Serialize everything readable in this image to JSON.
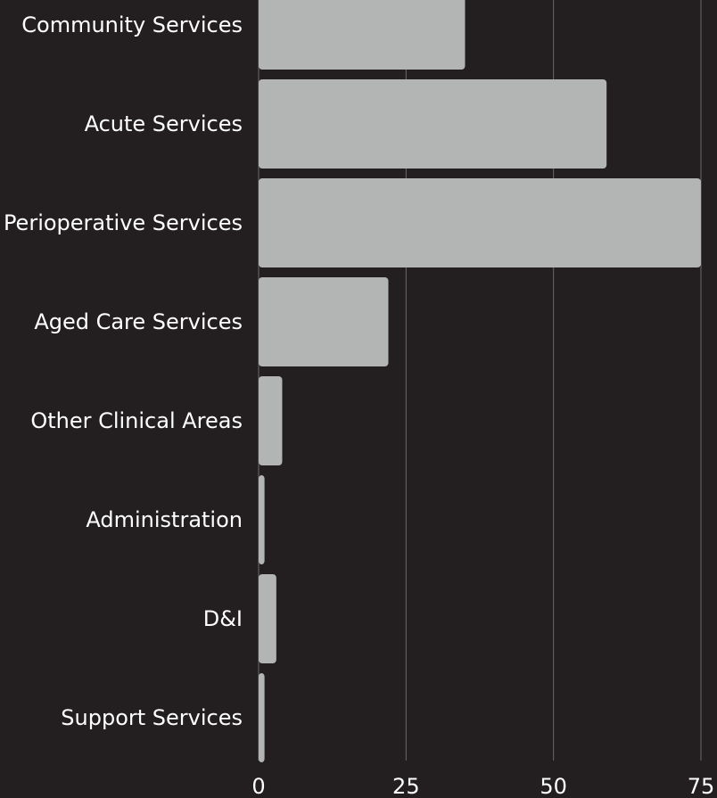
{
  "chart_data": {
    "type": "bar",
    "orientation": "horizontal",
    "title": "",
    "xlabel": "",
    "ylabel": "",
    "categories": [
      "Community Services",
      "Acute Services",
      "Perioperative Services",
      "Aged Care Services",
      "Other Clinical Areas",
      "Administration",
      "D&I",
      "Support Services"
    ],
    "values": [
      35,
      59,
      75,
      22,
      4,
      1,
      3,
      1
    ],
    "xlim": [
      0,
      75
    ],
    "xticks": [
      "0",
      "25",
      "50",
      "75"
    ],
    "grid": true,
    "legend": "none",
    "colors": {
      "background": "#231f20",
      "bar": "#b3b5b4",
      "grid": "#6b6869",
      "text": "#ffffff"
    }
  }
}
